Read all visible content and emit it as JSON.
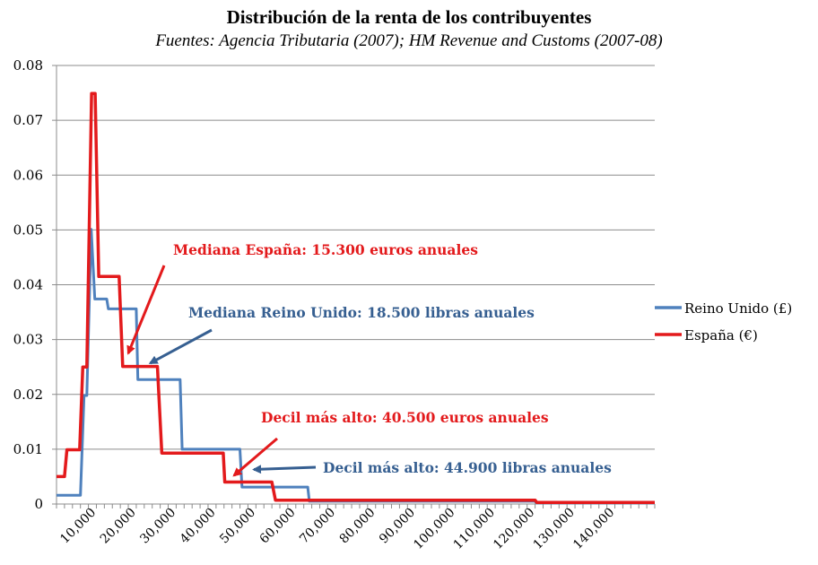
{
  "chart_data": {
    "type": "line",
    "title": "Distribución de la renta de los contribuyentes",
    "subtitle": "Fuentes: Agencia Tributaria (2007); HM Revenue and Customs (2007-08)",
    "xlabel": "",
    "ylabel": "",
    "xlim": [
      0,
      150000
    ],
    "ylim": [
      0,
      0.08
    ],
    "y_ticks": [
      {
        "value": 0,
        "label": "0"
      },
      {
        "value": 0.01,
        "label": "0.01"
      },
      {
        "value": 0.02,
        "label": "0.02"
      },
      {
        "value": 0.03,
        "label": "0.03"
      },
      {
        "value": 0.04,
        "label": "0.04"
      },
      {
        "value": 0.05,
        "label": "0.05"
      },
      {
        "value": 0.06,
        "label": "0.06"
      },
      {
        "value": 0.07,
        "label": "0.07"
      },
      {
        "value": 0.08,
        "label": "0.08"
      }
    ],
    "x_ticks": [
      {
        "value": 10000,
        "label": "10,000"
      },
      {
        "value": 20000,
        "label": "20,000"
      },
      {
        "value": 30000,
        "label": "30,000"
      },
      {
        "value": 40000,
        "label": "40,000"
      },
      {
        "value": 50000,
        "label": "50,000"
      },
      {
        "value": 60000,
        "label": "60,000"
      },
      {
        "value": 70000,
        "label": "70,000"
      },
      {
        "value": 80000,
        "label": "80,000"
      },
      {
        "value": 90000,
        "label": "90,000"
      },
      {
        "value": 100000,
        "label": "100,000"
      },
      {
        "value": 110000,
        "label": "110,000"
      },
      {
        "value": 120000,
        "label": "120,000"
      },
      {
        "value": 130000,
        "label": "130,000"
      },
      {
        "value": 140000,
        "label": "140,000"
      }
    ],
    "legend_position": "right",
    "series": [
      {
        "name": "Reino Unido (£)",
        "color": "#4f81bd",
        "points": [
          [
            0,
            0.0016
          ],
          [
            6000,
            0.0016
          ],
          [
            6900,
            0.0198
          ],
          [
            7600,
            0.0198
          ],
          [
            8700,
            0.0501
          ],
          [
            9600,
            0.0374
          ],
          [
            12600,
            0.0374
          ],
          [
            13000,
            0.0356
          ],
          [
            20000,
            0.0356
          ],
          [
            20400,
            0.0227
          ],
          [
            31000,
            0.0227
          ],
          [
            31500,
            0.01
          ],
          [
            46000,
            0.01
          ],
          [
            46500,
            0.0031
          ],
          [
            63000,
            0.0031
          ],
          [
            63400,
            0.0005
          ],
          [
            120000,
            0.0005
          ],
          [
            120300,
            0.0002
          ],
          [
            150000,
            0.0002
          ]
        ]
      },
      {
        "name": "España (€)",
        "color": "#e31a1c",
        "points": [
          [
            0,
            0.005
          ],
          [
            2000,
            0.005
          ],
          [
            2600,
            0.0099
          ],
          [
            5800,
            0.0099
          ],
          [
            6600,
            0.025
          ],
          [
            7600,
            0.025
          ],
          [
            8800,
            0.0749
          ],
          [
            9700,
            0.0749
          ],
          [
            10600,
            0.0415
          ],
          [
            15700,
            0.0415
          ],
          [
            16600,
            0.0251
          ],
          [
            25300,
            0.0251
          ],
          [
            26400,
            0.0093
          ],
          [
            41800,
            0.0093
          ],
          [
            42200,
            0.004
          ],
          [
            54000,
            0.004
          ],
          [
            54900,
            0.0007
          ],
          [
            120000,
            0.0007
          ],
          [
            120400,
            0.0003
          ],
          [
            150000,
            0.0003
          ]
        ]
      }
    ],
    "annotations": [
      {
        "text": "Mediana España: 15.300 euros anuales",
        "color": "#e31a1c",
        "target": [
          18000,
          0.0275
        ]
      },
      {
        "text": "Mediana Reino Unido: 18.500 libras anuales",
        "color": "#365f91",
        "target": [
          23500,
          0.0257
        ]
      },
      {
        "text": "Decil más alto: 40.500 euros anuales",
        "color": "#e31a1c",
        "target": [
          44500,
          0.0052
        ]
      },
      {
        "text": "Decil más alto: 44.900 libras anuales",
        "color": "#365f91",
        "target": [
          49500,
          0.0063
        ]
      }
    ]
  }
}
